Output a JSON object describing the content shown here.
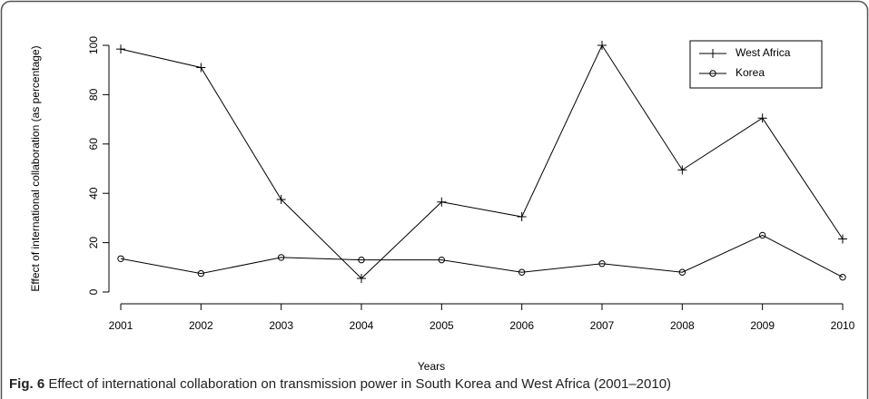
{
  "chart_data": {
    "type": "line",
    "x_label": "Years",
    "y_label": "Effect of international collaboration (as percentage)",
    "x": [
      2001,
      2002,
      2003,
      2004,
      2005,
      2006,
      2007,
      2008,
      2009,
      2010
    ],
    "series": [
      {
        "name": "West Africa",
        "color": "#000000",
        "marker": "plus",
        "values": [
          98.5,
          91,
          37.5,
          5.5,
          36.5,
          30.5,
          100,
          49.5,
          70.5,
          21.5
        ]
      },
      {
        "name": "Korea",
        "color": "#000000",
        "marker": "circle",
        "values": [
          13.5,
          7.5,
          14,
          13,
          13,
          8,
          11.5,
          8,
          23,
          6
        ]
      }
    ],
    "xlim": [
      2001,
      2010
    ],
    "xticks": [
      2001,
      2002,
      2003,
      2004,
      2005,
      2006,
      2007,
      2008,
      2009,
      2010
    ],
    "ylim": [
      0,
      100
    ],
    "yticks": [
      0,
      20,
      40,
      60,
      80,
      100
    ],
    "grid": false,
    "legend": "upper right"
  },
  "caption": {
    "label": "Fig. 6",
    "text": "Effect of international collaboration on transmission power in South Korea and West Africa (2001–2010)"
  }
}
